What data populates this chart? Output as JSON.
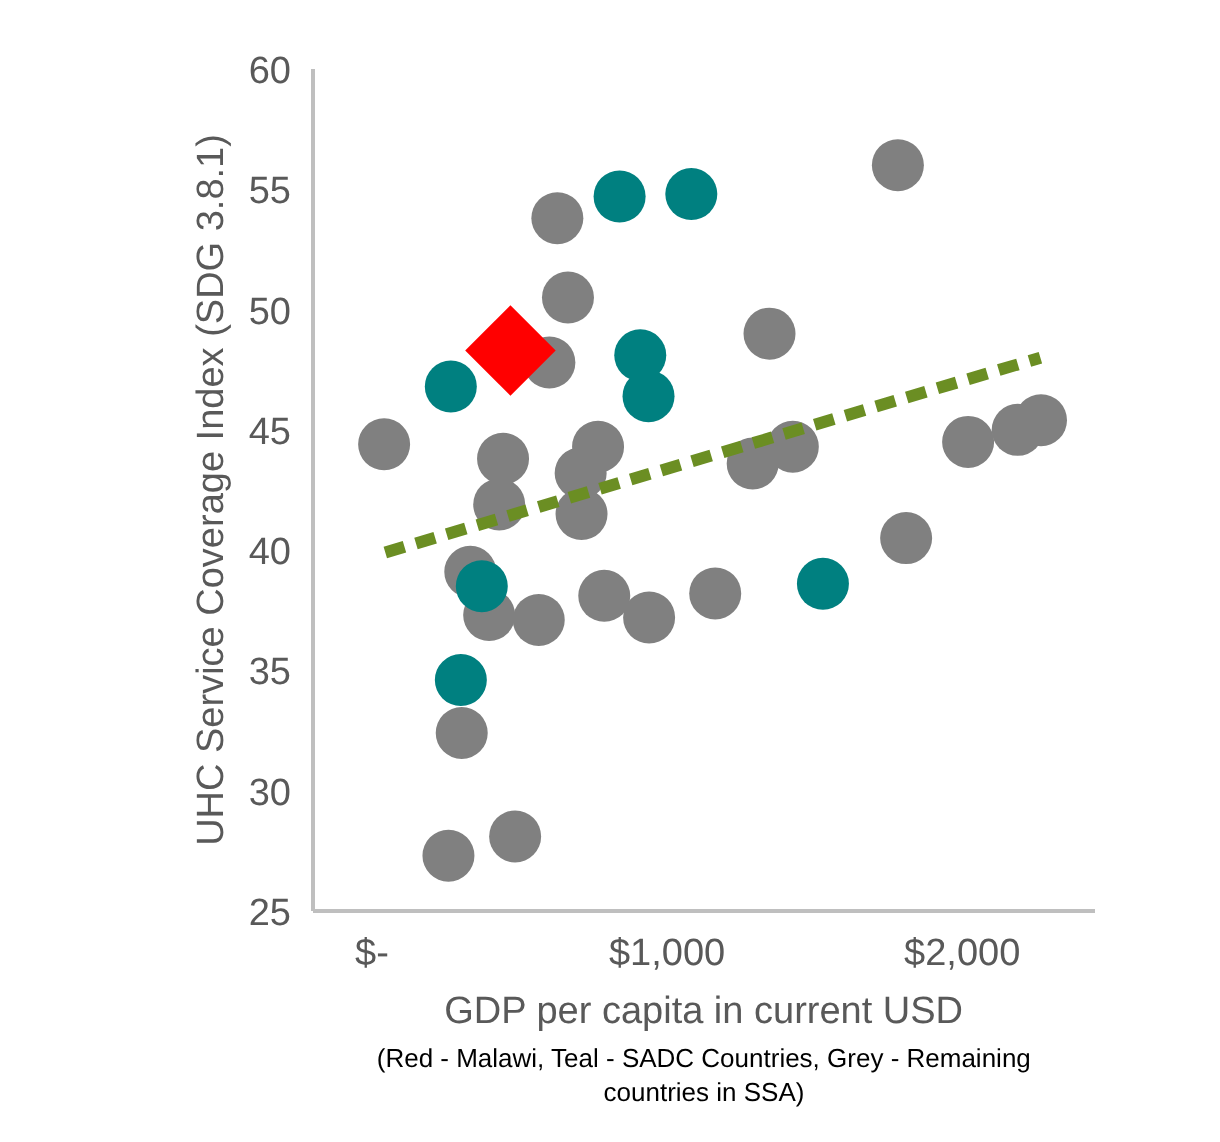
{
  "chart_data": {
    "type": "scatter",
    "xlabel": "GDP per capita in current USD",
    "ylabel": "UHC Service Coverage Index (SDG 3.8.1)",
    "annotations": [
      "(Red - Malawi, Teal - SADC Countries, Grey - Remaining countries in SSA)"
    ],
    "xlim": [
      -200,
      2450
    ],
    "ylim": [
      25,
      60
    ],
    "xticks": [
      {
        "value": 0,
        "label": "$-"
      },
      {
        "value": 1000,
        "label": "$1,000"
      },
      {
        "value": 2000,
        "label": "$2,000"
      }
    ],
    "yticks": [
      25,
      30,
      35,
      40,
      45,
      50,
      55,
      60
    ],
    "grid": false,
    "series": [
      {
        "color": "#808080",
        "marker": "circle",
        "x": [
          41,
          628,
          664,
          601,
          444,
          766,
          707,
          431,
          710,
          333,
          397,
          565,
          787,
          939,
          1163,
          1290,
          1426,
          1347,
          1782,
          1810,
          2020,
          2188,
          2267,
          304,
          259,
          485
        ],
        "values": [
          44.4,
          53.8,
          50.5,
          47.8,
          43.8,
          44.3,
          43.2,
          41.9,
          41.5,
          39.1,
          37.3,
          37.1,
          38.1,
          37.2,
          38.2,
          43.6,
          44.3,
          49.0,
          56.0,
          40.5,
          44.5,
          45.0,
          45.4,
          32.4,
          27.3,
          28.1
        ]
      },
      {
        "color": "#008080",
        "marker": "circle",
        "x": [
          839,
          1082,
          909,
          937,
          267,
          372,
          301,
          1528
        ],
        "values": [
          54.7,
          54.8,
          48.1,
          46.4,
          46.8,
          38.5,
          34.6,
          38.6
        ]
      },
      {
        "color": "#ff0000",
        "marker": "diamond",
        "x": [
          469
        ],
        "values": [
          48.3
        ]
      },
      {
        "type": "line",
        "color": "#6b8e23",
        "line_style": "dashed",
        "marker": "none",
        "x": [
          45,
          2265
        ],
        "values": [
          39.9,
          48.0
        ]
      }
    ]
  }
}
